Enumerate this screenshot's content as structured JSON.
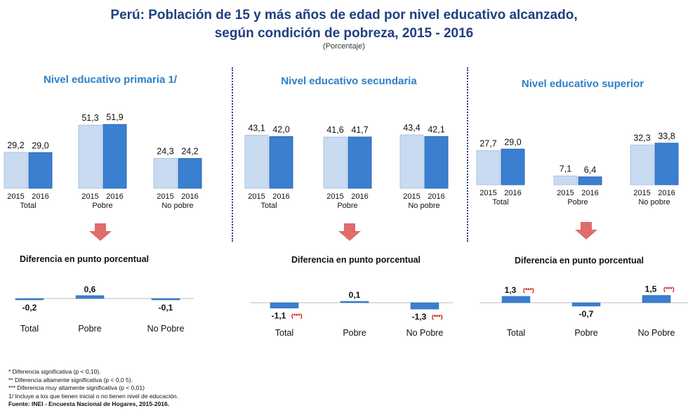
{
  "header": {
    "title_line1": "Perú: Población de 15 y más años de edad por nivel educativo alcanzado,",
    "title_line2": "según condición de pobreza, 2015 - 2016",
    "subtitle": "(Porcentaje)"
  },
  "colors": {
    "y2015": "#c9dbf1",
    "y2016": "#3a7fd0",
    "diff": "#3a7fd0",
    "title": "#1f3f7f",
    "panel_title": "#2e7fc6",
    "arrow": "#e06b6b",
    "sig": "#c00000"
  },
  "diff_title": "Diferencia en punto porcentual",
  "chart_data": [
    {
      "type": "bar",
      "title": "Nivel educativo primaria 1/",
      "categories": [
        "Total",
        "Pobre",
        "No pobre"
      ],
      "series": [
        {
          "name": "2015",
          "values": [
            29.2,
            51.3,
            24.3
          ],
          "labels": [
            "29,2",
            "51,3",
            "24,3"
          ]
        },
        {
          "name": "2016",
          "values": [
            29.0,
            51.9,
            24.2
          ],
          "labels": [
            "29,0",
            "51,9",
            "24,2"
          ]
        }
      ],
      "year_labels": [
        "2015",
        "2016"
      ],
      "ylim": [
        0,
        60
      ],
      "diff": {
        "categories": [
          "Total",
          "Pobre",
          "No Pobre"
        ],
        "values": [
          -0.2,
          0.6,
          -0.1
        ],
        "labels": [
          "-0,2",
          "0,6",
          "-0,1"
        ],
        "sig": [
          "",
          "",
          ""
        ]
      }
    },
    {
      "type": "bar",
      "title": "Nivel educativo secundaria",
      "categories": [
        "Total",
        "Pobre",
        "No pobre"
      ],
      "series": [
        {
          "name": "2015",
          "values": [
            43.1,
            41.6,
            43.4
          ],
          "labels": [
            "43,1",
            "41,6",
            "43,4"
          ]
        },
        {
          "name": "2016",
          "values": [
            42.0,
            41.7,
            42.1
          ],
          "labels": [
            "42,0",
            "41,7",
            "42,1"
          ]
        }
      ],
      "year_labels": [
        "2015",
        "2016"
      ],
      "ylim": [
        0,
        60
      ],
      "diff": {
        "categories": [
          "Total",
          "Pobre",
          "No Pobre"
        ],
        "values": [
          -1.1,
          0.1,
          -1.3
        ],
        "labels": [
          "-1,1",
          "0,1",
          "-1,3"
        ],
        "sig": [
          "(***)",
          "",
          "(***)"
        ]
      }
    },
    {
      "type": "bar",
      "title": "Nivel educativo superior",
      "categories": [
        "Total",
        "Pobre",
        "No pobre"
      ],
      "series": [
        {
          "name": "2015",
          "values": [
            27.7,
            7.1,
            32.3
          ],
          "labels": [
            "27,7",
            "7,1",
            "32,3"
          ]
        },
        {
          "name": "2016",
          "values": [
            29.0,
            6.4,
            33.8
          ],
          "labels": [
            "29,0",
            "6,4",
            "33,8"
          ]
        }
      ],
      "year_labels": [
        "2015",
        "2016"
      ],
      "ylim": [
        0,
        60
      ],
      "diff": {
        "categories": [
          "Total",
          "Pobre",
          "No Pobre"
        ],
        "values": [
          1.3,
          -0.7,
          1.5
        ],
        "labels": [
          "1,3",
          "-0,7",
          "1,5"
        ],
        "sig": [
          "(***)",
          "",
          "(***)"
        ]
      }
    }
  ],
  "notes": [
    "* Diferencia significativa (p < 0,10).",
    "** Diferencia altamente significativa (p < 0,0 5).",
    "*** Diferencia muy altamente significativa (p < 0,01)",
    "1/ Incluye a los que tienen inicial o no tienen nivel de educación."
  ],
  "source": "Fuente: INEI - Encuesta Nacional de Hogares, 2015-2016."
}
